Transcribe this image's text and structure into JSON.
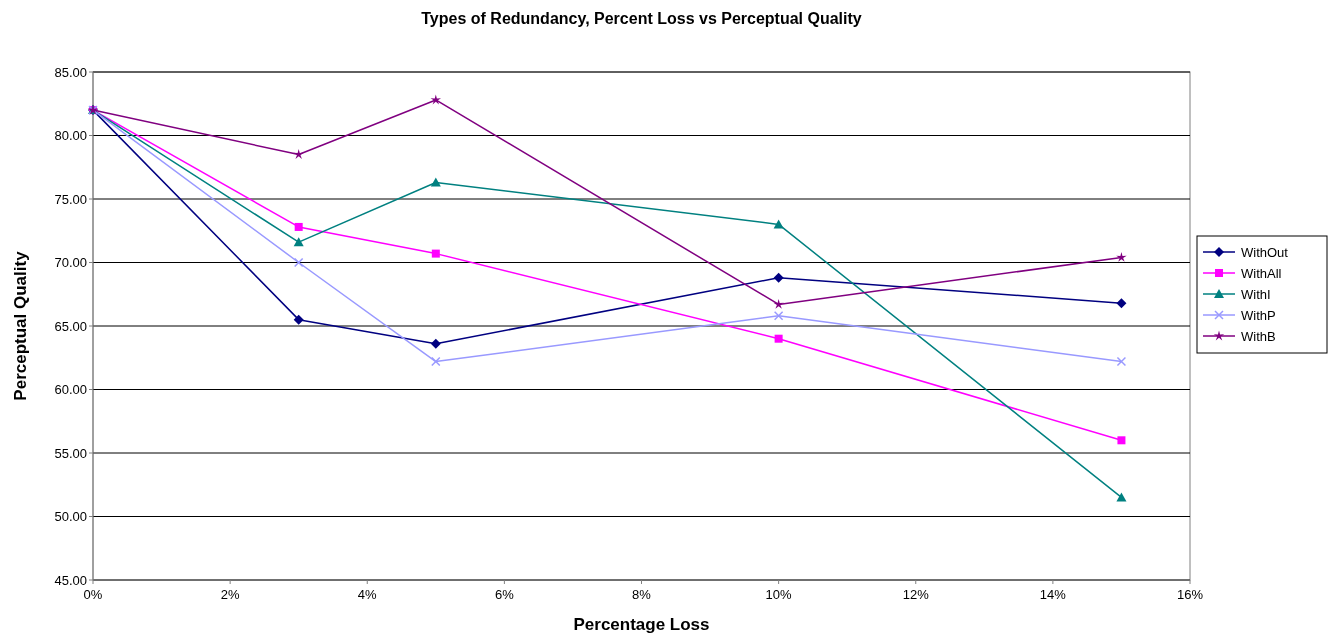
{
  "chart_data": {
    "type": "line",
    "title": "Types of Redundancy, Percent Loss vs Perceptual Quality",
    "xlabel": "Percentage Loss",
    "ylabel": "Perceptual Quality",
    "x": [
      0,
      3,
      5,
      10,
      15
    ],
    "xlim": [
      0,
      16
    ],
    "xticks": [
      {
        "value": 0,
        "label": "0%"
      },
      {
        "value": 2,
        "label": "2%"
      },
      {
        "value": 4,
        "label": "4%"
      },
      {
        "value": 6,
        "label": "6%"
      },
      {
        "value": 8,
        "label": "8%"
      },
      {
        "value": 10,
        "label": "10%"
      },
      {
        "value": 12,
        "label": "12%"
      },
      {
        "value": 14,
        "label": "14%"
      },
      {
        "value": 16,
        "label": "16%"
      }
    ],
    "ylim": [
      45,
      85
    ],
    "yticks": [
      {
        "value": 45,
        "label": "45.00"
      },
      {
        "value": 50,
        "label": "50.00"
      },
      {
        "value": 55,
        "label": "55.00"
      },
      {
        "value": 60,
        "label": "60.00"
      },
      {
        "value": 65,
        "label": "65.00"
      },
      {
        "value": 70,
        "label": "70.00"
      },
      {
        "value": 75,
        "label": "75.00"
      },
      {
        "value": 80,
        "label": "80.00"
      },
      {
        "value": 85,
        "label": "85.00"
      }
    ],
    "grid": "y",
    "legend": "right",
    "line_style": "solid",
    "series": [
      {
        "name": "WithOut",
        "color": "#000080",
        "marker": "diamond",
        "values": [
          82,
          65.5,
          63.6,
          68.8,
          66.8
        ]
      },
      {
        "name": "WithAll",
        "color": "#ff00ff",
        "marker": "square",
        "values": [
          82,
          72.8,
          70.7,
          64.0,
          56.0
        ]
      },
      {
        "name": "WithI",
        "color": "#008080",
        "marker": "triangle",
        "values": [
          82,
          71.6,
          76.3,
          73.0,
          51.5
        ]
      },
      {
        "name": "WithP",
        "color": "#9999ff",
        "marker": "cross",
        "values": [
          82,
          70.0,
          62.2,
          65.8,
          62.2
        ]
      },
      {
        "name": "WithB",
        "color": "#800080",
        "marker": "star",
        "values": [
          82,
          78.5,
          82.8,
          66.7,
          70.4
        ]
      }
    ]
  }
}
